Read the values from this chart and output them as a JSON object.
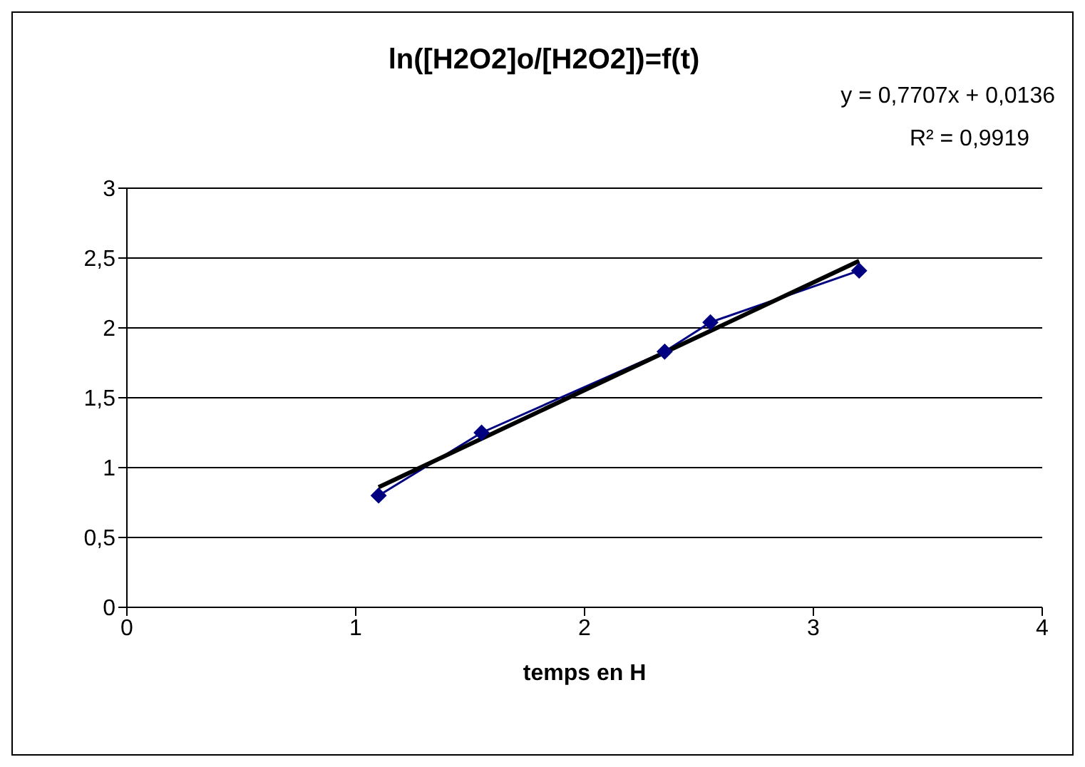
{
  "chart_data": {
    "type": "line",
    "title": "ln([H2O2]o/[H2O2])=f(t)",
    "xlabel": "temps en H",
    "annotations": [
      "y = 0,7707x + 0,0136",
      "R² = 0,9919"
    ],
    "series": [
      {
        "color": "#000080",
        "x": [
          1.1,
          1.55,
          2.35,
          2.55,
          3.2
        ],
        "values": [
          0.8,
          1.25,
          1.83,
          2.04,
          2.41
        ],
        "marker": "diamond"
      },
      {
        "color": "#000000",
        "x": [
          1.1,
          3.2
        ],
        "values": [
          0.86,
          2.48
        ],
        "marker": "none"
      }
    ],
    "xlim": [
      0,
      4
    ],
    "xticks": [
      0,
      1,
      2,
      3,
      4
    ],
    "ylim": [
      0,
      3
    ],
    "yticks": [
      0,
      {
        "value": 0.5,
        "label": "0,5"
      },
      1,
      {
        "value": 1.5,
        "label": "1,5"
      },
      2,
      {
        "value": 2.5,
        "label": "2,5"
      },
      3
    ],
    "grid": "y"
  }
}
